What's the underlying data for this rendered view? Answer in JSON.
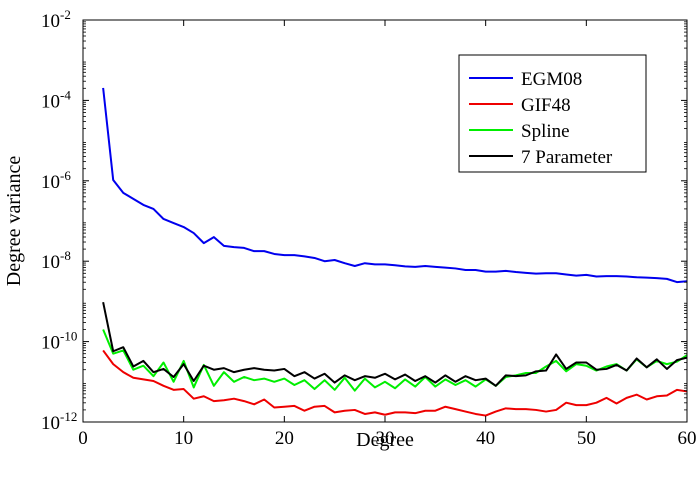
{
  "chart_data": {
    "type": "line",
    "title": "",
    "xlabel": "Degree",
    "ylabel": "Degree variance",
    "xlim": [
      0,
      60
    ],
    "ylim_log10": [
      -12,
      -2
    ],
    "grid": false,
    "legend_position": "top-right",
    "x_ticks": [
      {
        "value": 0,
        "label": "0"
      },
      {
        "value": 10,
        "label": "10"
      },
      {
        "value": 20,
        "label": "20"
      },
      {
        "value": 30,
        "label": "30"
      },
      {
        "value": 40,
        "label": "40"
      },
      {
        "value": 50,
        "label": "50"
      },
      {
        "value": 60,
        "label": "60"
      }
    ],
    "y_ticks": [
      {
        "exp": -12,
        "base": "10",
        "sup": "-12"
      },
      {
        "exp": -10,
        "base": "10",
        "sup": "-10"
      },
      {
        "exp": -8,
        "base": "10",
        "sup": "-8"
      },
      {
        "exp": -6,
        "base": "10",
        "sup": "-6"
      },
      {
        "exp": -4,
        "base": "10",
        "sup": "-4"
      },
      {
        "exp": -2,
        "base": "10",
        "sup": "-2"
      }
    ],
    "x": [
      2,
      3,
      4,
      5,
      6,
      7,
      8,
      9,
      10,
      11,
      12,
      13,
      14,
      15,
      16,
      17,
      18,
      19,
      20,
      21,
      22,
      23,
      24,
      25,
      26,
      27,
      28,
      29,
      30,
      31,
      32,
      33,
      34,
      35,
      36,
      37,
      38,
      39,
      40,
      41,
      42,
      43,
      44,
      45,
      46,
      47,
      48,
      49,
      50,
      51,
      52,
      53,
      54,
      55,
      56,
      57,
      58,
      59,
      60
    ],
    "series": [
      {
        "name": "EGM08",
        "color": "#0000ee",
        "log10_values": [
          -3.69,
          -5.98,
          -6.3,
          -6.45,
          -6.6,
          -6.7,
          -6.95,
          -7.05,
          -7.15,
          -7.3,
          -7.55,
          -7.4,
          -7.62,
          -7.65,
          -7.67,
          -7.75,
          -7.75,
          -7.82,
          -7.85,
          -7.85,
          -7.88,
          -7.92,
          -8.0,
          -7.97,
          -8.05,
          -8.12,
          -8.05,
          -8.08,
          -8.08,
          -8.1,
          -8.13,
          -8.14,
          -8.12,
          -8.14,
          -8.16,
          -8.18,
          -8.22,
          -8.22,
          -8.26,
          -8.26,
          -8.24,
          -8.27,
          -8.29,
          -8.31,
          -8.3,
          -8.3,
          -8.33,
          -8.36,
          -8.34,
          -8.38,
          -8.37,
          -8.37,
          -8.38,
          -8.4,
          -8.41,
          -8.42,
          -8.44,
          -8.52,
          -8.5
        ]
      },
      {
        "name": "GIF48",
        "color": "#ee0000",
        "log10_values": [
          -10.22,
          -10.56,
          -10.76,
          -10.9,
          -10.94,
          -10.98,
          -11.1,
          -11.2,
          -11.18,
          -11.42,
          -11.36,
          -11.48,
          -11.46,
          -11.42,
          -11.48,
          -11.56,
          -11.44,
          -11.64,
          -11.62,
          -11.6,
          -11.72,
          -11.62,
          -11.6,
          -11.76,
          -11.72,
          -11.7,
          -11.8,
          -11.76,
          -11.82,
          -11.76,
          -11.76,
          -11.78,
          -11.72,
          -11.72,
          -11.62,
          -11.68,
          -11.74,
          -11.8,
          -11.84,
          -11.74,
          -11.66,
          -11.68,
          -11.68,
          -11.7,
          -11.74,
          -11.7,
          -11.52,
          -11.58,
          -11.58,
          -11.52,
          -11.4,
          -11.54,
          -11.4,
          -11.32,
          -11.44,
          -11.36,
          -11.34,
          -11.2,
          -11.24
        ]
      },
      {
        "name": "Spline",
        "color": "#00ee00",
        "log10_values": [
          -9.7,
          -10.3,
          -10.22,
          -10.7,
          -10.6,
          -10.86,
          -10.52,
          -11.0,
          -10.48,
          -11.14,
          -10.58,
          -11.1,
          -10.76,
          -11.0,
          -10.88,
          -10.96,
          -10.92,
          -11.0,
          -10.92,
          -11.08,
          -10.96,
          -11.18,
          -10.96,
          -11.2,
          -10.9,
          -11.22,
          -10.92,
          -11.14,
          -11.0,
          -11.16,
          -10.94,
          -11.12,
          -10.88,
          -11.12,
          -10.94,
          -11.08,
          -10.96,
          -11.12,
          -10.94,
          -11.1,
          -10.88,
          -10.84,
          -10.78,
          -10.78,
          -10.62,
          -10.48,
          -10.74,
          -10.56,
          -10.6,
          -10.72,
          -10.62,
          -10.56,
          -10.72,
          -10.44,
          -10.64,
          -10.48,
          -10.56,
          -10.5,
          -10.34
        ]
      },
      {
        "name": "7 Parameter",
        "color": "#000000",
        "log10_values": [
          -9.02,
          -10.24,
          -10.14,
          -10.62,
          -10.48,
          -10.76,
          -10.68,
          -10.88,
          -10.56,
          -10.98,
          -10.6,
          -10.7,
          -10.66,
          -10.76,
          -10.7,
          -10.66,
          -10.7,
          -10.72,
          -10.68,
          -10.86,
          -10.76,
          -10.92,
          -10.8,
          -11.02,
          -10.84,
          -10.96,
          -10.86,
          -10.9,
          -10.8,
          -10.94,
          -10.82,
          -10.98,
          -10.86,
          -11.02,
          -10.84,
          -11.0,
          -10.86,
          -10.96,
          -10.92,
          -11.1,
          -10.84,
          -10.86,
          -10.84,
          -10.74,
          -10.72,
          -10.32,
          -10.68,
          -10.52,
          -10.52,
          -10.7,
          -10.68,
          -10.58,
          -10.72,
          -10.42,
          -10.64,
          -10.44,
          -10.68,
          -10.46,
          -10.4
        ]
      }
    ]
  }
}
